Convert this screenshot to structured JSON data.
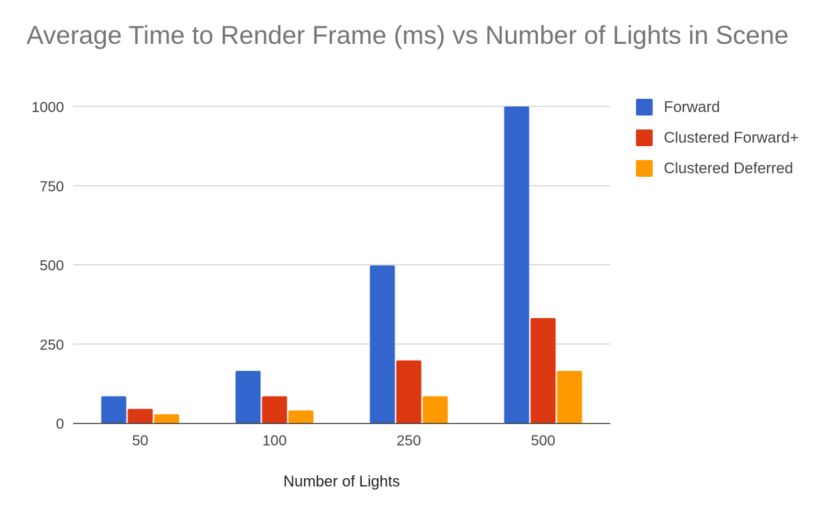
{
  "chart_data": {
    "type": "bar",
    "title": "Average Time to Render Frame (ms) vs Number of Lights in Scene",
    "xlabel": "Number of Lights",
    "ylabel": "",
    "categories": [
      "50",
      "100",
      "250",
      "500"
    ],
    "series": [
      {
        "name": "Forward",
        "color": "#3366cc",
        "values": [
          85,
          165,
          498,
          1000
        ]
      },
      {
        "name": "Clustered Forward+",
        "color": "#dc3912",
        "values": [
          45,
          85,
          198,
          332
        ]
      },
      {
        "name": "Clustered Deferred",
        "color": "#ff9900",
        "values": [
          28,
          40,
          85,
          165
        ]
      }
    ],
    "ylim": [
      0,
      1000
    ],
    "yticks": [
      0,
      250,
      500,
      750,
      1000
    ],
    "grid": true,
    "legend_position": "right"
  }
}
